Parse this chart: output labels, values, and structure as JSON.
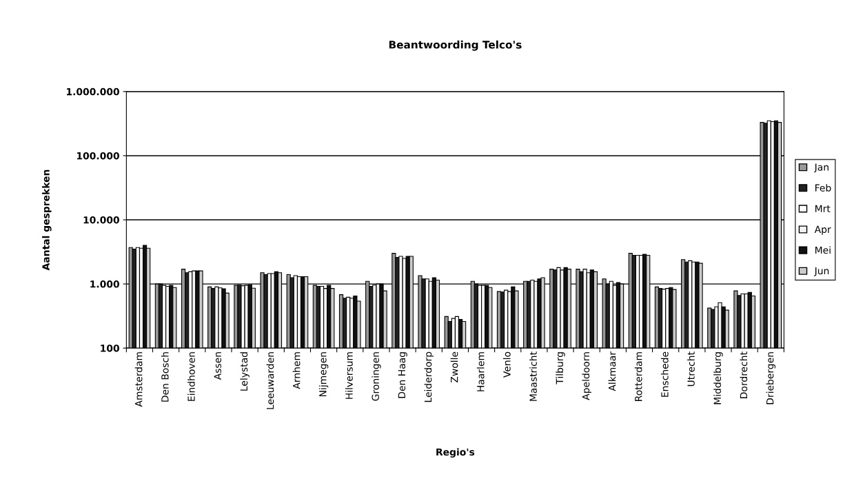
{
  "chart_data": {
    "type": "bar",
    "title": "Beantwoording Telco's",
    "xlabel": "Regio's",
    "ylabel": "Aantal gesprekken",
    "categories": [
      "Amsterdam",
      "Den Bosch",
      "Eindhoven",
      "Assen",
      "Lelystad",
      "Leeuwarden",
      "Arnhem",
      "Nijmegen",
      "Hilversum",
      "Groningen",
      "Den Haag",
      "Leiderdorp",
      "Zwolle",
      "Haarlem",
      "Venlo",
      "Maastricht",
      "Tilburg",
      "Apeldoorn",
      "Alkmaar",
      "Rotterdam",
      "Enschede",
      "Utrecht",
      "Middelburg",
      "Dordrecht",
      "Driebergen"
    ],
    "series": [
      {
        "name": "Jan",
        "color": "#999999",
        "values": [
          3700,
          1000,
          1700,
          900,
          950,
          1500,
          1400,
          950,
          680,
          1100,
          3000,
          1350,
          310,
          1100,
          760,
          1100,
          1700,
          1700,
          1200,
          3000,
          900,
          2400,
          420,
          780,
          330000
        ]
      },
      {
        "name": "Feb",
        "color": "#222222",
        "values": [
          3500,
          1000,
          1500,
          850,
          960,
          1400,
          1250,
          920,
          600,
          920,
          2600,
          1200,
          260,
          1000,
          750,
          1100,
          1650,
          1550,
          1000,
          2800,
          850,
          2200,
          400,
          660,
          320000
        ]
      },
      {
        "name": "Mrt",
        "color": "#ffffff",
        "values": [
          3700,
          950,
          1550,
          900,
          940,
          1450,
          1350,
          920,
          620,
          960,
          2700,
          1200,
          290,
          950,
          800,
          1150,
          1800,
          1700,
          1100,
          2800,
          830,
          2300,
          440,
          700,
          350000
        ]
      },
      {
        "name": "Apr",
        "color": "#f2f2f2",
        "values": [
          3600,
          920,
          1600,
          870,
          950,
          1450,
          1300,
          850,
          600,
          1000,
          2500,
          1100,
          310,
          950,
          760,
          1100,
          1650,
          1500,
          950,
          2800,
          850,
          2200,
          510,
          700,
          340000
        ]
      },
      {
        "name": "Mei",
        "color": "#111111",
        "values": [
          4000,
          950,
          1600,
          840,
          970,
          1550,
          1300,
          950,
          650,
          1000,
          2700,
          1250,
          280,
          950,
          900,
          1200,
          1800,
          1650,
          1050,
          2900,
          880,
          2200,
          440,
          740,
          350000
        ]
      },
      {
        "name": "Jun",
        "color": "#cccccc",
        "values": [
          3600,
          880,
          1600,
          720,
          860,
          1500,
          1300,
          850,
          540,
          780,
          2700,
          1150,
          260,
          880,
          780,
          1250,
          1700,
          1550,
          1000,
          2800,
          820,
          2100,
          390,
          650,
          330000
        ]
      }
    ],
    "log": true,
    "ylim": [
      100,
      1000000
    ],
    "yticks": [
      {
        "value": 100,
        "label": "100"
      },
      {
        "value": 1000,
        "label": "1.000"
      },
      {
        "value": 10000,
        "label": "10.000"
      },
      {
        "value": 100000,
        "label": "100.000"
      },
      {
        "value": 1000000,
        "label": "1.000.000"
      }
    ],
    "grid": "y",
    "legend": "right"
  }
}
